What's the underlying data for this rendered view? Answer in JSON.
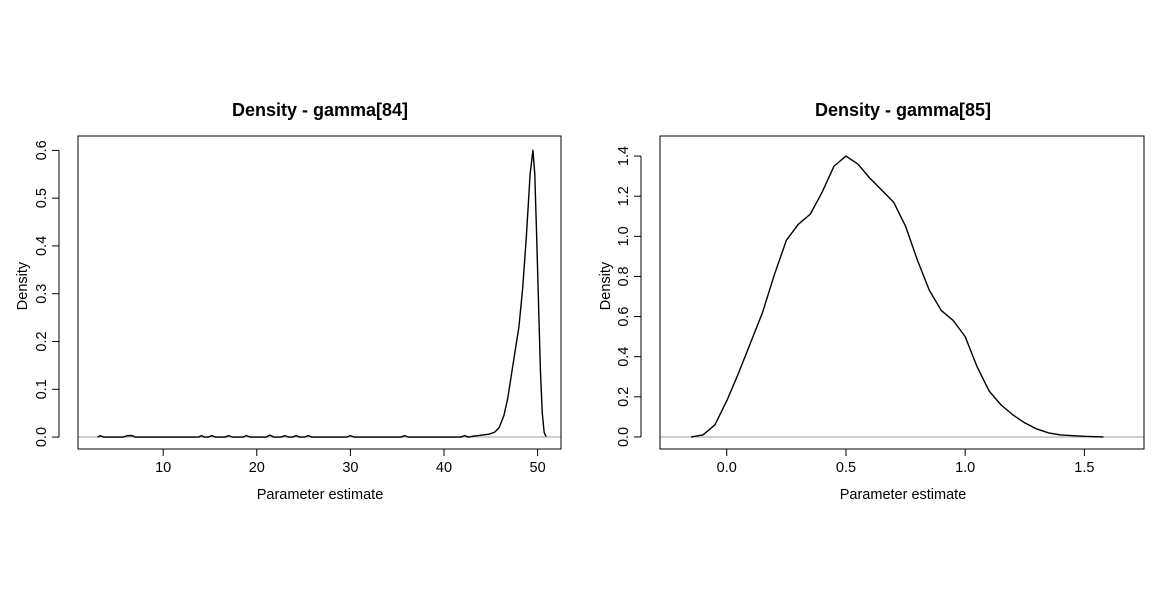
{
  "chart_data": [
    {
      "type": "line",
      "title": "Density - gamma[84]",
      "xlabel": "Parameter estimate",
      "ylabel": "Density",
      "xlim": [
        0.9,
        52.5
      ],
      "ylim": [
        -0.025,
        0.63
      ],
      "xticks": [
        "10",
        "20",
        "30",
        "40",
        "50"
      ],
      "yticks": [
        "0.0",
        "0.1",
        "0.2",
        "0.3",
        "0.4",
        "0.5",
        "0.6"
      ],
      "grid": false,
      "baseline": 0,
      "series": [
        {
          "color": "#000000",
          "x": [
            3.0,
            3.3,
            3.6,
            5.7,
            6.2,
            6.7,
            7.0,
            13.8,
            14.1,
            14.4,
            14.8,
            15.2,
            15.6,
            16.6,
            17.0,
            17.4,
            18.5,
            18.9,
            19.3,
            21.0,
            21.4,
            21.8,
            22.6,
            23.0,
            23.4,
            23.8,
            24.2,
            24.6,
            25.1,
            25.5,
            25.9,
            29.6,
            30.0,
            30.4,
            35.4,
            35.8,
            36.2,
            41.8,
            42.2,
            42.6,
            43.2,
            44.0,
            44.8,
            45.4,
            45.9,
            46.4,
            46.8,
            47.2,
            47.6,
            48.0,
            48.4,
            48.8,
            49.2,
            49.5,
            49.7,
            49.9,
            50.1,
            50.3,
            50.5,
            50.7,
            50.9
          ],
          "y": [
            0,
            0.003,
            0,
            0,
            0.003,
            0.003,
            0,
            0,
            0.003,
            0,
            0,
            0.003,
            0,
            0,
            0.003,
            0,
            0,
            0.003,
            0,
            0,
            0.004,
            0,
            0,
            0.003,
            0,
            0,
            0.003,
            0,
            0,
            0.003,
            0,
            0,
            0.003,
            0,
            0,
            0.003,
            0,
            0,
            0.003,
            0,
            0.002,
            0.004,
            0.006,
            0.01,
            0.02,
            0.045,
            0.08,
            0.13,
            0.18,
            0.23,
            0.31,
            0.42,
            0.55,
            0.6,
            0.55,
            0.42,
            0.28,
            0.14,
            0.05,
            0.01,
            0.001
          ]
        }
      ]
    },
    {
      "type": "line",
      "title": "Density - gamma[85]",
      "xlabel": "Parameter estimate",
      "ylabel": "Density",
      "xlim": [
        -0.28,
        1.75
      ],
      "ylim": [
        -0.06,
        1.5
      ],
      "xticks": [
        "0.0",
        "0.5",
        "1.0",
        "1.5"
      ],
      "yticks": [
        "0.0",
        "0.2",
        "0.4",
        "0.6",
        "0.8",
        "1.0",
        "1.2",
        "1.4"
      ],
      "grid": false,
      "baseline": 0,
      "series": [
        {
          "color": "#000000",
          "x": [
            -0.15,
            -0.1,
            -0.05,
            0.0,
            0.05,
            0.1,
            0.15,
            0.2,
            0.25,
            0.3,
            0.35,
            0.4,
            0.45,
            0.5,
            0.55,
            0.6,
            0.65,
            0.7,
            0.75,
            0.8,
            0.85,
            0.9,
            0.95,
            1.0,
            1.05,
            1.1,
            1.15,
            1.2,
            1.25,
            1.3,
            1.35,
            1.4,
            1.5,
            1.58
          ],
          "y": [
            0.0,
            0.01,
            0.06,
            0.18,
            0.32,
            0.47,
            0.62,
            0.81,
            0.98,
            1.06,
            1.11,
            1.22,
            1.35,
            1.4,
            1.36,
            1.29,
            1.23,
            1.17,
            1.05,
            0.88,
            0.73,
            0.63,
            0.58,
            0.5,
            0.35,
            0.23,
            0.16,
            0.11,
            0.07,
            0.04,
            0.02,
            0.01,
            0.003,
            0.0
          ]
        }
      ]
    }
  ]
}
